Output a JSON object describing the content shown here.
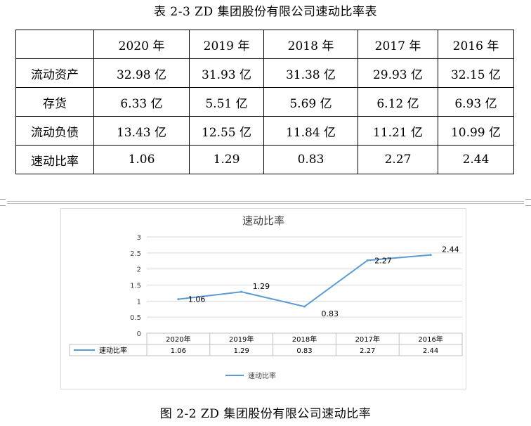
{
  "table_title": "表 2-3 ZD 集团股份有限公司速动比率表",
  "table": {
    "header": [
      "",
      "2020 年",
      "2019 年",
      "2018 年",
      "2017 年",
      "2016 年"
    ],
    "rows": [
      [
        "流动资产",
        "32.98 亿",
        "31.93 亿",
        "31.38 亿",
        "29.93 亿",
        "32.15 亿"
      ],
      [
        "存货",
        "6.33 亿",
        "5.51 亿",
        "5.69 亿",
        "6.12 亿",
        "6.93 亿"
      ],
      [
        "流动负债",
        "13.43 亿",
        "12.55 亿",
        "11.84 亿",
        "11.21 亿",
        "10.99 亿"
      ],
      [
        "速动比率",
        "1.06",
        "1.29",
        "0.83",
        "2.27",
        "2.44"
      ]
    ]
  },
  "figure_caption": "图 2-2 ZD 集团股份有限公司速动比率",
  "colors": {
    "series_line": "#5b9bd5",
    "gridline": "#d9d9d9",
    "axis_text": "#404040"
  },
  "chart_data": {
    "type": "line",
    "title": "速动比率",
    "categories": [
      "2020年",
      "2019年",
      "2018年",
      "2017年",
      "2016年"
    ],
    "series": [
      {
        "name": "速动比率",
        "values": [
          1.06,
          1.29,
          0.83,
          2.27,
          2.44
        ],
        "labels": [
          "1.06",
          "1.29",
          "0.83",
          "2.27",
          "2.44"
        ]
      }
    ],
    "ylim": [
      0,
      3
    ],
    "yticks": [
      "0",
      "0.5",
      "1",
      "1.5",
      "2",
      "2.5",
      "3"
    ],
    "grid": true,
    "data_table": true,
    "legend": "bottom"
  }
}
